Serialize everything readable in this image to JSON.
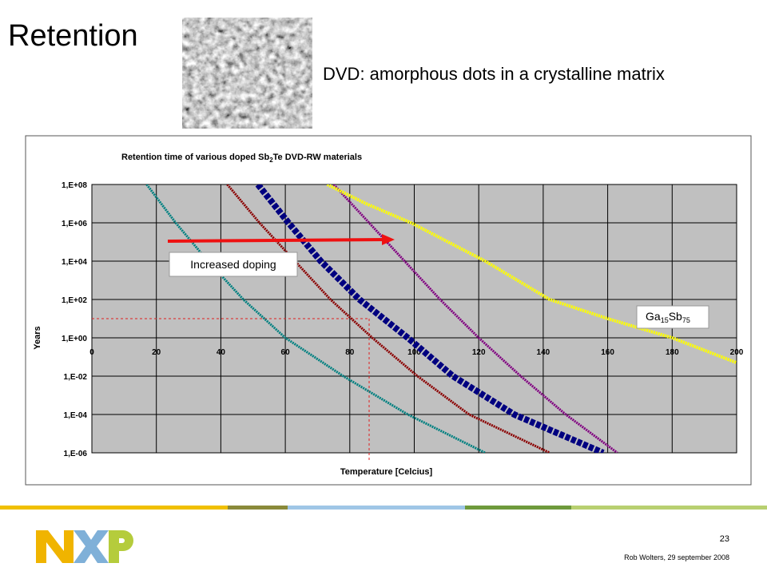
{
  "slide": {
    "title": "Retention",
    "subtitle": "DVD: amorphous dots in a crystalline matrix",
    "page": "23",
    "footer": "Rob Wolters, 29 september 2008"
  },
  "chart_data": {
    "type": "line",
    "title_parts": [
      "Retention time of various doped Sb",
      "2",
      "Te DVD-RW materials"
    ],
    "x_label": "Temperature [Celcius]",
    "y_label": "Years",
    "log_y": true,
    "grid": true,
    "xlim": [
      0,
      200
    ],
    "xticks": [
      0,
      20,
      40,
      60,
      80,
      100,
      120,
      140,
      160,
      180,
      200
    ],
    "ylim": [
      1e-06,
      100000000.0
    ],
    "yticks": [
      {
        "value": 100000000.0,
        "label": "1,E+08"
      },
      {
        "value": 1000000.0,
        "label": "1,E+06"
      },
      {
        "value": 10000.0,
        "label": "1,E+04"
      },
      {
        "value": 100,
        "label": "1,E+02"
      },
      {
        "value": 1,
        "label": "1,E+00"
      },
      {
        "value": 0.01,
        "label": "1,E-02"
      },
      {
        "value": 0.0001,
        "label": "1,E-04"
      },
      {
        "value": 1e-06,
        "label": "1,E-06"
      }
    ],
    "series": [
      {
        "color": "#008080",
        "width": 3,
        "x": [
          17,
          26,
          36,
          47,
          60,
          78,
          98,
          122
        ],
        "values": [
          100000000.0,
          1000000.0,
          10000.0,
          100,
          1,
          0.01,
          0.0001,
          1e-06
        ]
      },
      {
        "color": "#8b0000",
        "width": 3,
        "x": [
          42,
          52,
          63,
          74,
          87,
          101,
          117,
          142
        ],
        "values": [
          100000000.0,
          1000000.0,
          10000.0,
          100,
          1,
          0.01,
          0.0001,
          1e-06
        ]
      },
      {
        "color": "#000080",
        "width": 8,
        "x": [
          51.5,
          61,
          71,
          83,
          98,
          112,
          131,
          158.6
        ],
        "values": [
          100000000.0,
          1000000.0,
          10000.0,
          100,
          1,
          0.01,
          0.0001,
          1e-06
        ]
      },
      {
        "color": "#800080",
        "width": 3,
        "x": [
          75,
          86,
          97,
          108,
          120,
          133,
          147,
          163
        ],
        "values": [
          100000000.0,
          1000000.0,
          10000.0,
          100,
          1,
          0.01,
          0.0001,
          1e-06
        ]
      },
      {
        "color": "#ffff00",
        "width": 4,
        "x": [
          73,
          85,
          99,
          122,
          142,
          160,
          180,
          200
        ],
        "values": [
          100000000.0,
          10000000.0,
          1000000.0,
          10000.0,
          100,
          10,
          1,
          0.05
        ]
      }
    ],
    "ref_x": 86,
    "ref_y": 10,
    "annotations": {
      "doping": "Increased doping",
      "material_parts": [
        "Ga",
        "15",
        "Sb",
        "75"
      ]
    }
  }
}
